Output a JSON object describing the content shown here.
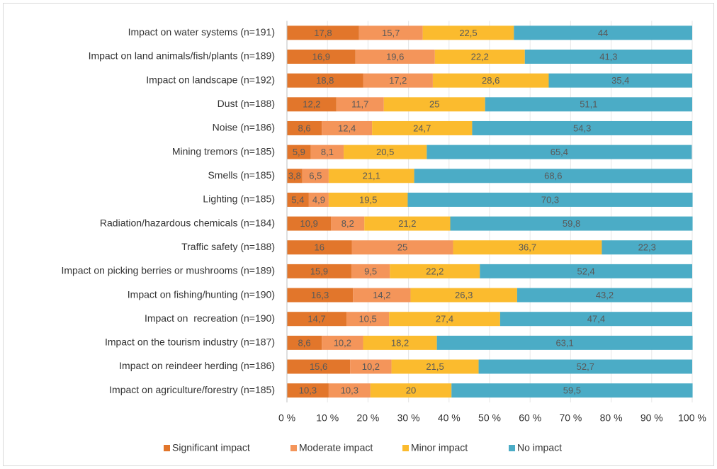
{
  "chart_data": {
    "type": "stacked_barh",
    "categories": [
      "Impact on water systems (n=191)",
      "Impact on land animals/fish/plants (n=189)",
      "Impact on landscape (n=192)",
      "Dust (n=188)",
      "Noise (n=186)",
      "Mining tremors (n=185)",
      "Smells (n=185)",
      "Lighting (n=185)",
      "Radiation/hazardous chemicals (n=184)",
      "Traffic safety (n=188)",
      "Impact on picking berries or mushrooms (n=189)",
      "Impact on fishing/hunting (n=190)",
      "Impact on  recreation (n=190)",
      "Impact on the tourism industry (n=187)",
      "Impact on reindeer herding (n=186)",
      "Impact on agriculture/forestry (n=185)"
    ],
    "series": [
      {
        "name": "Significant impact",
        "color": "#e2762b",
        "values": [
          17.8,
          16.9,
          18.8,
          12.2,
          8.6,
          5.9,
          3.8,
          5.4,
          10.9,
          16,
          15.9,
          16.3,
          14.7,
          8.6,
          15.6,
          10.3
        ],
        "value_labels": [
          "17,8",
          "16,9",
          "18,8",
          "12,2",
          "8,6",
          "5,9",
          "3,8",
          "5,4",
          "10,9",
          "16",
          "15,9",
          "16,3",
          "14,7",
          "8,6",
          "15,6",
          "10,3"
        ]
      },
      {
        "name": "Moderate impact",
        "color": "#f4955a",
        "values": [
          15.7,
          19.6,
          17.2,
          11.7,
          12.4,
          8.1,
          6.5,
          4.9,
          8.2,
          25,
          9.5,
          14.2,
          10.5,
          10.2,
          10.2,
          10.3
        ],
        "value_labels": [
          "15,7",
          "19,6",
          "17,2",
          "11,7",
          "12,4",
          "8,1",
          "6,5",
          "4,9",
          "8,2",
          "25",
          "9,5",
          "14,2",
          "10,5",
          "10,2",
          "10,2",
          "10,3"
        ]
      },
      {
        "name": "Minor impact",
        "color": "#fbbb2e",
        "values": [
          22.5,
          22.2,
          28.6,
          25,
          24.7,
          20.5,
          21.1,
          19.5,
          21.2,
          36.7,
          22.2,
          26.3,
          27.4,
          18.2,
          21.5,
          20
        ],
        "value_labels": [
          "22,5",
          "22,2",
          "28,6",
          "25",
          "24,7",
          "20,5",
          "21,1",
          "19,5",
          "21,2",
          "36,7",
          "22,2",
          "26,3",
          "27,4",
          "18,2",
          "21,5",
          "20"
        ]
      },
      {
        "name": "No impact",
        "color": "#4bacc6",
        "values": [
          44,
          41.3,
          35.4,
          51.1,
          54.3,
          65.4,
          68.6,
          70.3,
          59.8,
          22.3,
          52.4,
          43.2,
          47.4,
          63.1,
          52.7,
          59.5
        ],
        "value_labels": [
          "44",
          "41,3",
          "35,4",
          "51,1",
          "54,3",
          "65,4",
          "68,6",
          "70,3",
          "59,8",
          "22,3",
          "52,4",
          "43,2",
          "47,4",
          "63,1",
          "52,7",
          "59,5"
        ]
      }
    ],
    "xlim": [
      0,
      100
    ],
    "xticks": [
      {
        "value": 0,
        "label": "0 %"
      },
      {
        "value": 10,
        "label": "10 %"
      },
      {
        "value": 20,
        "label": "20 %"
      },
      {
        "value": 30,
        "label": "30 %"
      },
      {
        "value": 40,
        "label": "40 %"
      },
      {
        "value": 50,
        "label": "50 %"
      },
      {
        "value": 60,
        "label": "60 %"
      },
      {
        "value": 70,
        "label": "70 %"
      },
      {
        "value": 80,
        "label": "80 %"
      },
      {
        "value": 90,
        "label": "90 %"
      },
      {
        "value": 100,
        "label": "100 %"
      }
    ],
    "legend": "bottom"
  }
}
